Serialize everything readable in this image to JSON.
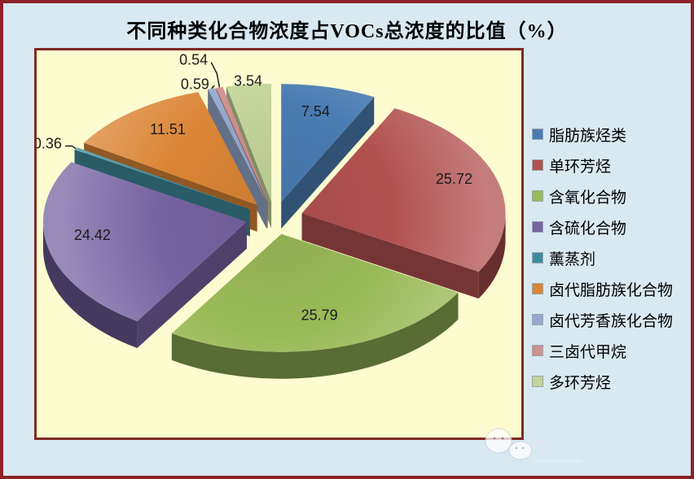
{
  "title": "不同种类化合物浓度占VOCs总浓度的比值（%）",
  "chart_data": {
    "type": "pie",
    "style": "3d-exploded",
    "title": "不同种类化合物浓度占VOCs总浓度的比值（%）",
    "unit": "%",
    "direction": "clockwise",
    "start_angle_deg": 0,
    "legend_position": "right",
    "categories": [
      "脂肪族烃类",
      "单环芳烃",
      "含氧化合物",
      "含硫化合物",
      "薰蒸剂",
      "卤代脂肪族化合物",
      "卤代芳香族化合物",
      "三卤代甲烷",
      "多环芳烃"
    ],
    "values": [
      7.54,
      25.72,
      25.79,
      24.42,
      0.36,
      11.51,
      0.59,
      0.54,
      3.54
    ],
    "labels": [
      "7.54",
      "25.72",
      "25.79",
      "24.42",
      "0.36",
      "11.51",
      "0.59",
      "0.54",
      "3.54"
    ],
    "colors": [
      "#4a7cb2",
      "#b15150",
      "#9aba58",
      "#7663a2",
      "#3e8c9b",
      "#db8535",
      "#95a9ce",
      "#d0918f",
      "#c4d59a"
    ]
  },
  "palette": {
    "page_background": "#d8e9f2",
    "page_border": "#8e2226",
    "plot_background": "#fdfbd0",
    "plot_border": "#7e2a24",
    "value_label_color": "#1c1c1c",
    "leader_line_color": "#111111",
    "legend_text_color": "#000000",
    "title_color": "#000000"
  }
}
